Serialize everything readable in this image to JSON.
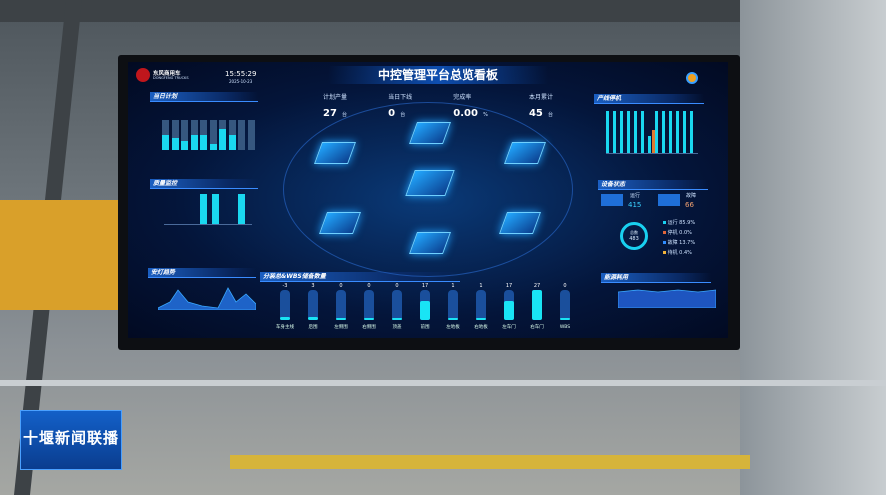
{
  "screen": {
    "brand": {
      "name": "东风商用车",
      "name_en": "DONGFENG TRUCKS"
    },
    "clock": {
      "time": "15:55:29",
      "date": "2025-10-23"
    },
    "title": "中控管理平台总览看板",
    "kpis": [
      {
        "label": "计划产量",
        "value": "27",
        "unit": "台"
      },
      {
        "label": "当日下线",
        "value": "0",
        "unit": "台"
      },
      {
        "label": "完成率",
        "value": "0.00",
        "unit": "%"
      },
      {
        "label": "本月累计",
        "value": "45",
        "unit": "台"
      }
    ],
    "panels": {
      "daily_plan": "当日计划",
      "quality": "质量监控",
      "andon": "安灯趋势",
      "wbs": "分装总&WBS储备数量",
      "downtime": "产线停机",
      "equipment": "设备状态",
      "energy": "能源耗用"
    },
    "equipment": {
      "running_label": "运行",
      "running": "415",
      "fault_label": "故障",
      "fault": "66",
      "total_label": "总数",
      "total": "483",
      "legend": [
        {
          "label": "运行 85.9%",
          "color": "#19d0f0"
        },
        {
          "label": "停机 0.0%",
          "color": "#e0663a"
        },
        {
          "label": "故障 13.7%",
          "color": "#2f8cff"
        },
        {
          "label": "待机 0.4%",
          "color": "#f0b23a"
        }
      ],
      "running_pct": 85.9
    },
    "wbs": {
      "categories": [
        "车身主线",
        "后围",
        "左侧围",
        "右侧围",
        "顶盖",
        "前围",
        "左地板",
        "右地板",
        "左车门",
        "右车门",
        "WBS"
      ],
      "values": [
        -3,
        3,
        0,
        0,
        0,
        17,
        1,
        1,
        17,
        27,
        0
      ]
    },
    "daily_plan_chart": {
      "plan": [
        10,
        10,
        10,
        10,
        10,
        10,
        10,
        10,
        10,
        10
      ],
      "actual": [
        5,
        4,
        3,
        5,
        5,
        2,
        7,
        5,
        0,
        0
      ]
    },
    "downtime_chart": {
      "a": [
        400,
        400,
        400,
        400,
        400,
        400,
        160,
        400,
        400,
        400,
        400,
        400,
        400
      ],
      "b": [
        0,
        0,
        0,
        0,
        0,
        0,
        220,
        0,
        0,
        0,
        0,
        0,
        0
      ]
    },
    "footer_logo": "十堰新闻联播"
  }
}
